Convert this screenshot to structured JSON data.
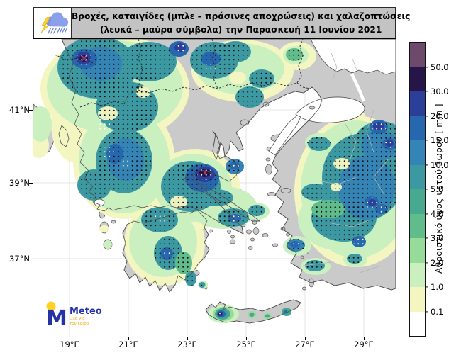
{
  "header": {
    "title_line1": "Βροχές, καταιγίδες (μπλε – πράσινες αποχρώσεις) και χαλαζοπτώσεις",
    "title_line2": "(λευκά – μαύρα σύμβολα) την Παρασκευή 11 Ιουνίου 2021"
  },
  "axes": {
    "lon_labels": [
      "19°E",
      "21°E",
      "23°E",
      "25°E",
      "27°E",
      "29°E"
    ],
    "lat_labels": [
      "41°N",
      "39°N",
      "37°N"
    ]
  },
  "colorbar": {
    "label": "Αθροιστικό ύψος υετού 3ωρου [ mm ]",
    "ticks": [
      "50.0",
      "30.0",
      "20.0",
      "15.0",
      "10.0",
      "5.0",
      "4.0",
      "3.0",
      "2.0",
      "1.0",
      "0.1"
    ],
    "colors": [
      "#6d4a6c",
      "#261549",
      "#2b3e98",
      "#2767ad",
      "#3484b5",
      "#3c99a2",
      "#47a98f",
      "#61bc8c",
      "#97db9b",
      "#cbf0c0",
      "#f4f6c1",
      "#ffffff"
    ],
    "units": "mm"
  },
  "logo": {
    "monogram": "M",
    "wordmark": "Meteo",
    "tagline_line1": "Όλα για",
    "tagline_line2": "τον καιρό"
  },
  "map": {
    "sea_color": "#ffffff",
    "land_color": "#cacaca",
    "coast_color": "#4f4f4f",
    "hail_symbol_black": "#0b0b0b",
    "hail_symbol_white": "#ffffff"
  }
}
